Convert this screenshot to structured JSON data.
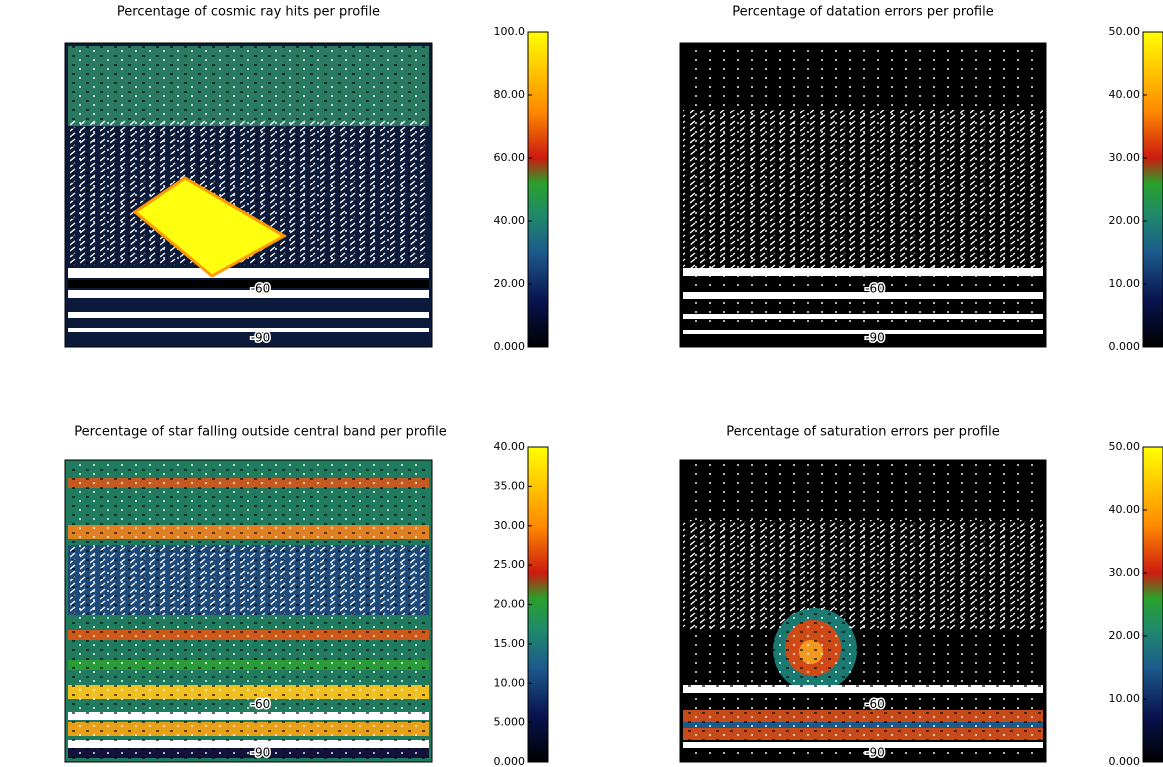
{
  "panels": [
    {
      "title": "Percentage of cosmic ray hits per profile",
      "colorbar_ticks": [
        "100.0",
        "80.00",
        "60.00",
        "40.00",
        "20.00",
        "0.000"
      ],
      "map_labels": [
        "-60",
        "-90"
      ]
    },
    {
      "title": "Percentage of datation errors per profile",
      "colorbar_ticks": [
        "50.00",
        "40.00",
        "30.00",
        "20.00",
        "10.00",
        "0.000"
      ],
      "map_labels": [
        "-60",
        "-90"
      ]
    },
    {
      "title": "Percentage of star falling outside central band per profile",
      "colorbar_ticks": [
        "40.00",
        "35.00",
        "30.00",
        "25.00",
        "20.00",
        "15.00",
        "10.00",
        "5.000",
        "0.000"
      ],
      "map_labels": [
        "-60",
        "-90"
      ]
    },
    {
      "title": "Percentage of saturation errors per profile",
      "colorbar_ticks": [
        "50.00",
        "40.00",
        "30.00",
        "20.00",
        "10.00",
        "0.000"
      ],
      "map_labels": [
        "-60",
        "-90"
      ]
    }
  ]
}
